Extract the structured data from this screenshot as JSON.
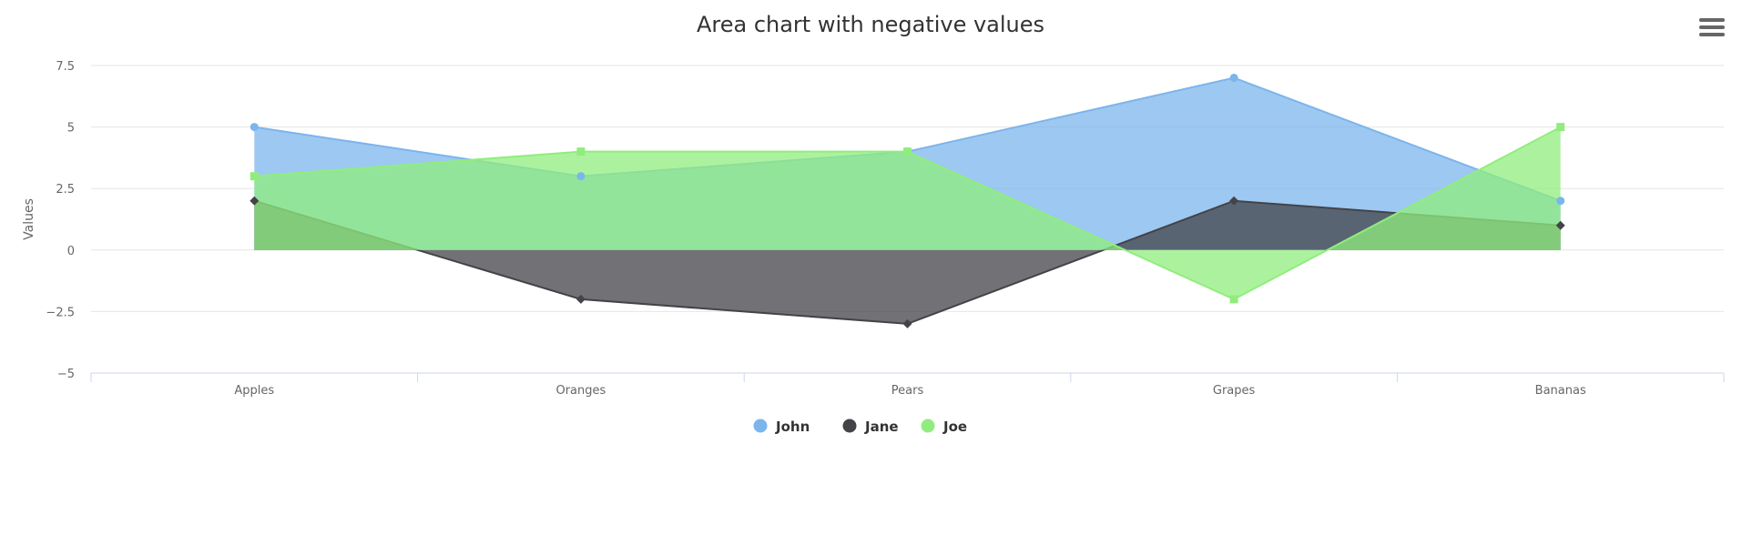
{
  "chart_data": {
    "type": "area",
    "title": "Area chart with negative values",
    "ylabel": "Values",
    "xlabel": "",
    "categories": [
      "Apples",
      "Oranges",
      "Pears",
      "Grapes",
      "Bananas"
    ],
    "ylim": [
      -5,
      7.5
    ],
    "yticks": [
      7.5,
      5,
      2.5,
      0,
      -2.5,
      -5
    ],
    "ytick_labels": [
      "7.5",
      "5",
      "2.5",
      "0",
      "−2.5",
      "−5"
    ],
    "grid": true,
    "legend_position": "bottom-center",
    "series": [
      {
        "name": "John",
        "values": [
          5,
          3,
          4,
          7,
          2
        ],
        "color": "#7cb5ec",
        "marker": "circle"
      },
      {
        "name": "Jane",
        "values": [
          2,
          -2,
          -3,
          2,
          1
        ],
        "color": "#434348",
        "marker": "diamond"
      },
      {
        "name": "Joe",
        "values": [
          3,
          4,
          4,
          -2,
          5
        ],
        "color": "#90ed7d",
        "marker": "square"
      }
    ]
  },
  "toolbar": {
    "menu_icon": "hamburger-menu-icon"
  }
}
